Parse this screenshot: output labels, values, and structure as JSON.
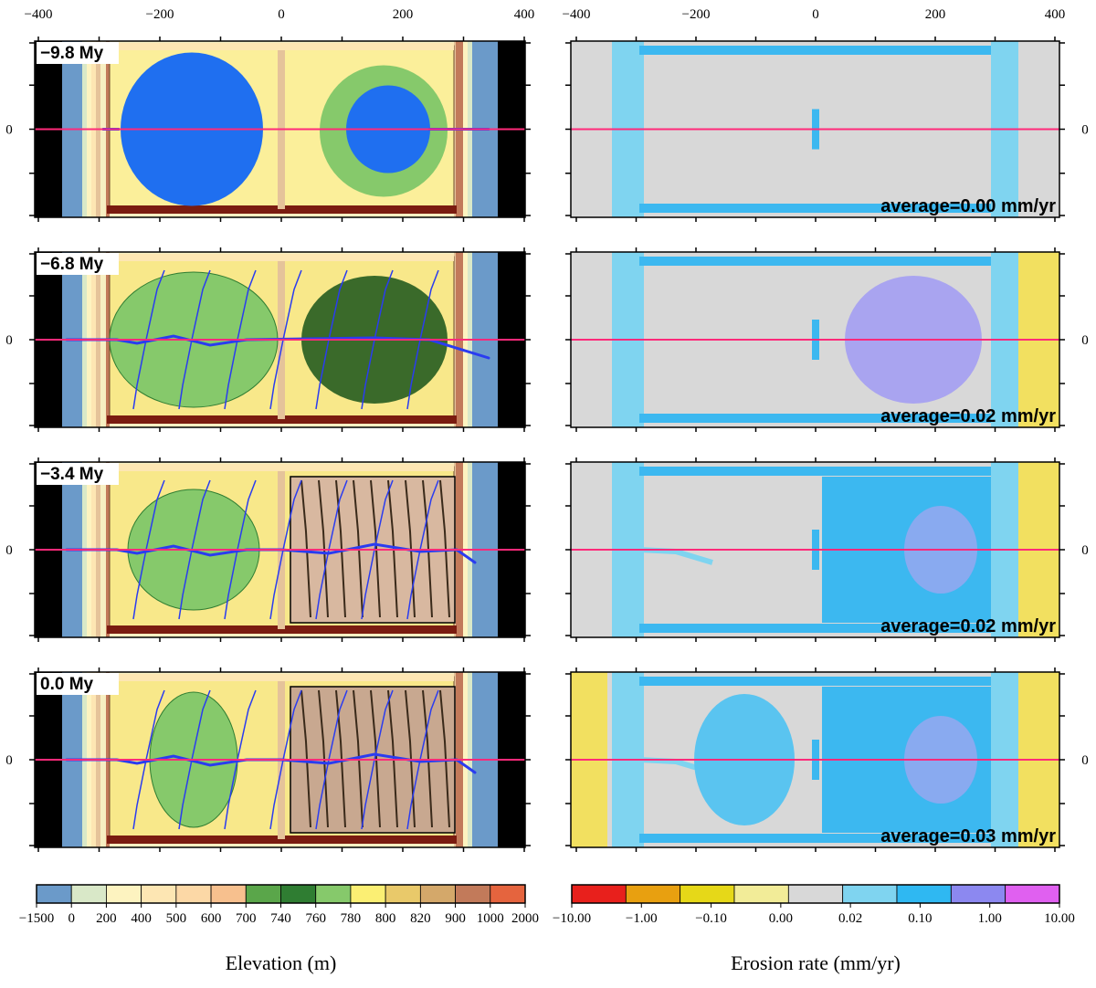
{
  "axes": {
    "x_ticks": [
      -400,
      -200,
      0,
      200,
      400
    ],
    "x_tick_labels": [
      "−400",
      "−200",
      "0",
      "200",
      "400"
    ],
    "y_tick_label": "0"
  },
  "panels": [
    {
      "time": "−9.8 My",
      "average": "average=0.00 mm/yr"
    },
    {
      "time": "−6.8 My",
      "average": "average=0.02 mm/yr"
    },
    {
      "time": "−3.4 My",
      "average": "average=0.02 mm/yr"
    },
    {
      "time": "0.0 My",
      "average": "average=0.03 mm/yr"
    }
  ],
  "elevation_colorbar": {
    "title": "Elevation (m)",
    "labels": [
      "−1500",
      "0",
      "200",
      "400",
      "500",
      "600",
      "700",
      "740",
      "760",
      "780",
      "800",
      "820",
      "900",
      "1000",
      "2000"
    ],
    "colors": [
      "#6b9ac9",
      "#d9e8c8",
      "#fdf3c0",
      "#fde6b3",
      "#fcd8a6",
      "#f7c08e",
      "#5aa64a",
      "#2f7d32",
      "#86c96b",
      "#fbef73",
      "#e9c96a",
      "#d4a86a",
      "#c27a5a",
      "#e5643e"
    ]
  },
  "erosion_colorbar": {
    "title": "Erosion rate (mm/yr)",
    "labels": [
      "−10.00",
      "−1.00",
      "−0.10",
      "0.00",
      "0.02",
      "0.10",
      "1.00",
      "10.00"
    ],
    "colors": [
      "#e8201c",
      "#e8a010",
      "#e6d818",
      "#f2ec98",
      "#d8d8d8",
      "#7fd4f0",
      "#2fb8f2",
      "#8c88f0",
      "#e060f0"
    ]
  },
  "colors": {
    "river": "#2a3cf0",
    "profile_line": "#ff2a7a",
    "ocean": "#6b9ac9",
    "border_black": "#000000",
    "uplift_brown": "#7a1c10",
    "lake_blue": "#1f6ff0",
    "erosion_grey": "#d8d8d8",
    "erosion_blue": "#3cb8f0"
  }
}
